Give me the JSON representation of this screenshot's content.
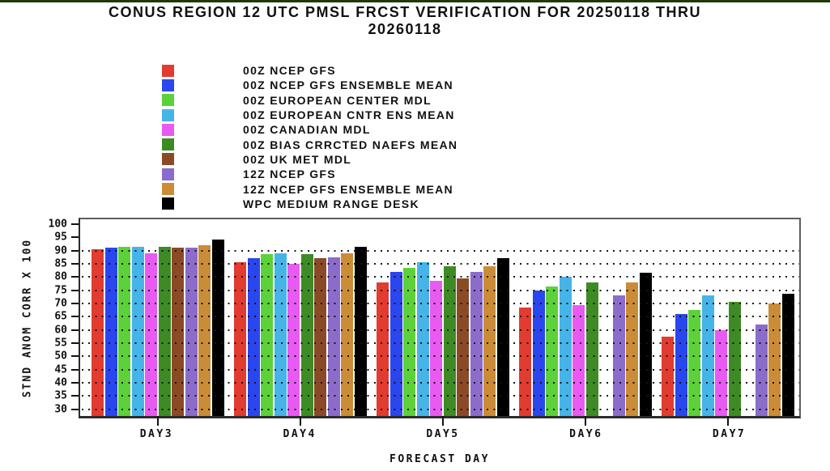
{
  "page": {
    "top_border_color": "#1c3a08"
  },
  "chart_data": {
    "type": "bar",
    "title": "CONUS REGION 12 UTC PMSL FRCST VERIFICATION FOR 20250118 THRU 20260118",
    "title_lines": [
      "CONUS REGION 12 UTC PMSL FRCST VERIFICATION FOR 20250118 THRU",
      "20260118"
    ],
    "xlabel": "FORECAST DAY",
    "ylabel": "STND ANOM CORR X 100",
    "categories": [
      "DAY3",
      "DAY4",
      "DAY5",
      "DAY6",
      "DAY7"
    ],
    "ylim": [
      30,
      100
    ],
    "ytick_step": 5,
    "gridline_values": [
      30,
      35,
      40,
      45,
      50,
      55,
      60,
      65,
      70,
      75,
      80,
      85,
      90
    ],
    "grid": "dotted-horizontal",
    "legend_position": "upper-left",
    "series": [
      {
        "name": "00Z NCEP GFS",
        "color": "#e23b30",
        "values": [
          90.5,
          85.5,
          78,
          68.5,
          57.5
        ]
      },
      {
        "name": "00Z NCEP GFS ENSEMBLE MEAN",
        "color": "#2a46ef",
        "values": [
          91,
          87,
          82,
          75,
          66
        ]
      },
      {
        "name": "00Z EUROPEAN CENTER MDL",
        "color": "#5cd139",
        "values": [
          91.5,
          88.5,
          83.5,
          76.5,
          67.5
        ]
      },
      {
        "name": "00Z EUROPEAN CNTR ENS MEAN",
        "color": "#45b4e9",
        "values": [
          91.5,
          89,
          85.5,
          80,
          73
        ]
      },
      {
        "name": "00Z CANADIAN MDL",
        "color": "#e95af2",
        "values": [
          89,
          85,
          78.5,
          69.5,
          60
        ]
      },
      {
        "name": "00Z BIAS CRRCTED NAEFS MEAN",
        "color": "#3e8b25",
        "values": [
          91.5,
          88.5,
          84,
          78,
          70.5
        ]
      },
      {
        "name": "00Z UK MET MDL",
        "color": "#8b4a26",
        "values": [
          91,
          87,
          79.5,
          null,
          null
        ]
      },
      {
        "name": "12Z NCEP GFS",
        "color": "#8b6ccb",
        "values": [
          91,
          87.5,
          82,
          73,
          62
        ]
      },
      {
        "name": "12Z NCEP GFS ENSEMBLE MEAN",
        "color": "#cb8c37",
        "values": [
          92,
          89,
          84,
          78,
          70
        ]
      },
      {
        "name": "WPC MEDIUM RANGE DESK",
        "color": "#000000",
        "values": [
          94,
          91.5,
          87,
          81.5,
          73.5
        ]
      }
    ]
  }
}
